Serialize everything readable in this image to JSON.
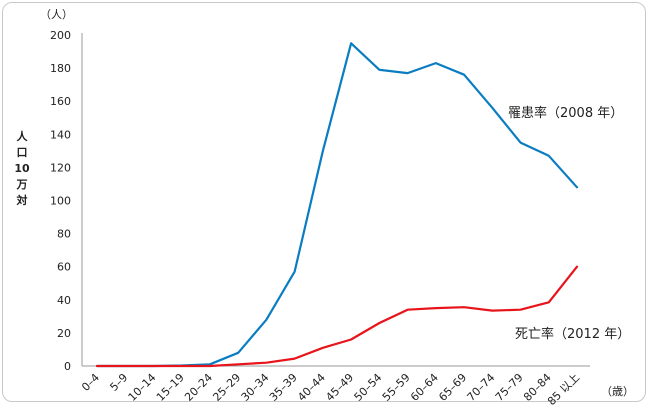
{
  "chart_data": {
    "type": "line",
    "y_unit": "（人）",
    "x_unit": "（歳）",
    "ylabel_chars": [
      "人",
      "口",
      "10",
      "万",
      "対"
    ],
    "ylim": [
      0,
      200
    ],
    "yticks": [
      0,
      20,
      40,
      60,
      80,
      100,
      120,
      140,
      160,
      180,
      200
    ],
    "categories": [
      "0–4",
      "5–9",
      "10–14",
      "15–19",
      "20–24",
      "25–29",
      "30–34",
      "35–39",
      "40–44",
      "45–49",
      "50–54",
      "55–59",
      "60–64",
      "65–69",
      "70–74",
      "75–79",
      "80–84",
      "85 以上"
    ],
    "grid": false,
    "series": [
      {
        "name": "罹患率（2008 年）",
        "color": "#0a7dc2",
        "values": [
          0,
          0,
          0,
          0.3,
          1,
          8,
          28,
          57,
          130,
          195,
          179,
          177,
          183,
          176,
          156,
          135,
          127,
          108
        ]
      },
      {
        "name": "死亡率（2012 年）",
        "color": "#e8141b",
        "values": [
          0,
          0,
          0,
          0,
          0,
          1,
          2,
          4.5,
          11,
          16,
          26,
          34,
          35,
          35.5,
          33.5,
          34,
          38.5,
          60
        ]
      }
    ]
  }
}
